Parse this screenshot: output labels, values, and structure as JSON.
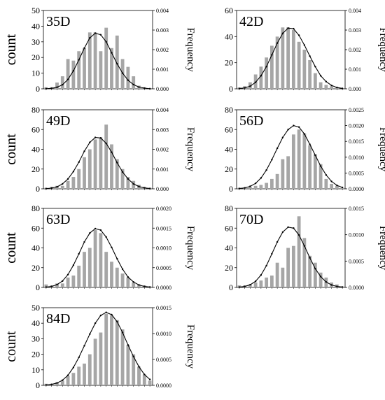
{
  "chart_data": [
    {
      "type": "bar",
      "title": "35D",
      "ylabel": "count",
      "y2label": "Frequency",
      "ylim": [
        0,
        50
      ],
      "yticks": [
        0,
        10,
        20,
        30,
        40,
        50
      ],
      "y2lim": [
        0,
        0.004
      ],
      "y2ticks": [
        "0.000",
        "0.001",
        "0.002",
        "0.003",
        "0.004"
      ],
      "values": [
        1,
        1,
        4,
        8,
        19,
        18,
        24,
        26,
        36,
        36,
        24,
        39,
        26,
        34,
        19,
        14,
        8,
        2,
        1,
        0
      ],
      "fit": [
        0.1,
        0.3,
        1,
        2.6,
        6,
        11.5,
        18.5,
        26,
        32.5,
        35.5,
        34.5,
        30,
        23,
        16,
        10,
        5.5,
        2.7,
        1.1,
        0.4,
        0.1
      ]
    },
    {
      "type": "bar",
      "title": "42D",
      "ylabel": "count",
      "y2label": "Frequency",
      "ylim": [
        0,
        60
      ],
      "yticks": [
        0,
        20,
        40,
        60
      ],
      "y2lim": [
        0,
        0.004
      ],
      "y2ticks": [
        "0.000",
        "0.001",
        "0.002",
        "0.003",
        "0.004"
      ],
      "values": [
        1,
        2,
        5,
        11,
        17,
        24,
        33,
        40,
        47,
        47,
        45,
        36,
        30,
        22,
        12,
        5,
        3,
        2,
        1,
        0
      ],
      "fit": [
        0.2,
        0.7,
        2,
        5,
        10,
        17,
        26,
        35,
        42.5,
        46.5,
        46,
        41,
        33.5,
        25,
        17,
        10,
        5.5,
        2.6,
        1,
        0.3
      ]
    },
    {
      "type": "bar",
      "title": "49D",
      "ylabel": "count",
      "y2label": "Frequency",
      "ylim": [
        0,
        80
      ],
      "yticks": [
        0,
        20,
        40,
        60,
        80
      ],
      "y2lim": [
        0,
        0.004
      ],
      "y2ticks": [
        "0.000",
        "0.001",
        "0.002",
        "0.003",
        "0.004"
      ],
      "values": [
        1,
        2,
        3,
        3,
        8,
        12,
        20,
        32,
        40,
        50,
        52,
        65,
        45,
        30,
        20,
        12,
        8,
        4,
        2,
        1
      ],
      "fit": [
        0.2,
        0.7,
        2,
        5,
        10,
        17.5,
        27,
        38,
        47,
        52,
        51.5,
        46,
        37,
        26.5,
        17,
        10,
        5,
        2.3,
        0.9,
        0.3
      ]
    },
    {
      "type": "bar",
      "title": "56D",
      "ylabel": "count",
      "y2label": "Frequency",
      "ylim": [
        0,
        80
      ],
      "yticks": [
        0,
        20,
        40,
        60,
        80
      ],
      "y2lim": [
        0,
        0.0025
      ],
      "y2ticks": [
        "0.0000",
        "0.0005",
        "0.0010",
        "0.0015",
        "0.0020",
        "0.0025"
      ],
      "values": [
        1,
        1,
        2,
        3,
        4,
        6,
        10,
        15,
        30,
        33,
        55,
        60,
        56,
        44,
        35,
        25,
        10,
        5,
        3,
        1
      ],
      "fit": [
        0.3,
        0.9,
        2.5,
        5.5,
        11,
        19,
        29.5,
        41,
        52,
        60,
        64,
        62.5,
        55.5,
        45,
        34,
        23,
        14,
        7.5,
        3.5,
        1.4
      ]
    },
    {
      "type": "bar",
      "title": "63D",
      "ylabel": "count",
      "y2label": "Frequency",
      "ylim": [
        0,
        80
      ],
      "yticks": [
        0,
        20,
        40,
        60,
        80
      ],
      "y2lim": [
        0,
        0.002
      ],
      "y2ticks": [
        "0.0000",
        "0.0005",
        "0.0010",
        "0.0015",
        "0.0020"
      ],
      "values": [
        3,
        2,
        4,
        4,
        10,
        12,
        22,
        36,
        40,
        58,
        55,
        36,
        26,
        20,
        14,
        10,
        5,
        3,
        2,
        1
      ],
      "fit": [
        0.3,
        1,
        2.8,
        6.5,
        13,
        22.5,
        34,
        46,
        55,
        59.5,
        58,
        51,
        40.5,
        29,
        18.5,
        10.5,
        5.5,
        2.5,
        1,
        0.4
      ]
    },
    {
      "type": "bar",
      "title": "70D",
      "ylabel": "count",
      "y2label": "Frequency",
      "ylim": [
        0,
        80
      ],
      "yticks": [
        0,
        20,
        40,
        60,
        80
      ],
      "y2lim": [
        0,
        0.0015
      ],
      "y2ticks": [
        "0.0000",
        "0.0005",
        "0.0010",
        "0.0015"
      ],
      "values": [
        2,
        2,
        3,
        5,
        7,
        10,
        12,
        25,
        20,
        40,
        42,
        72,
        50,
        32,
        25,
        15,
        10,
        5,
        3,
        1
      ],
      "fit": [
        0.3,
        1,
        2.7,
        6.2,
        12.5,
        22,
        34,
        46,
        56,
        61,
        60,
        53,
        42,
        30,
        19,
        11,
        5.5,
        2.5,
        1,
        0.4
      ]
    },
    {
      "type": "bar",
      "title": "84D",
      "ylabel": "count",
      "y2label": "Frequency",
      "ylim": [
        0,
        50
      ],
      "yticks": [
        0,
        10,
        20,
        30,
        40,
        50
      ],
      "y2lim": [
        0,
        0.0015
      ],
      "y2ticks": [
        "0.0000",
        "0.0005",
        "0.0010",
        "0.0015"
      ],
      "values": [
        1,
        1,
        2,
        3,
        6,
        8,
        12,
        14,
        20,
        30,
        34,
        46,
        45,
        42,
        36,
        26,
        20,
        12,
        7,
        3
      ],
      "fit": [
        0.2,
        0.6,
        1.5,
        3.3,
        6.5,
        11.5,
        18,
        25.5,
        33,
        40,
        45,
        47,
        45.5,
        41,
        34,
        26,
        18.5,
        12,
        7,
        3.8
      ]
    }
  ]
}
